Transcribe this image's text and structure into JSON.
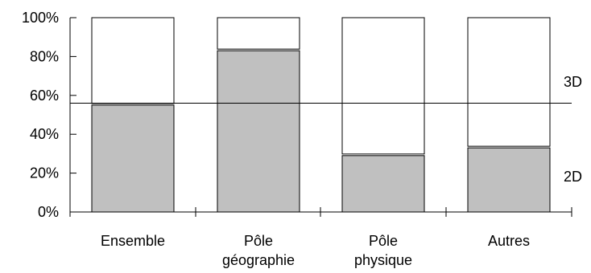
{
  "chart_data": {
    "type": "bar",
    "stacked": true,
    "categories": [
      [
        "Ensemble"
      ],
      [
        "Pôle",
        "géographie"
      ],
      [
        "Pôle",
        "physique"
      ],
      [
        "Autres"
      ]
    ],
    "series": [
      {
        "name": "2D",
        "values": [
          55,
          83,
          29,
          33
        ],
        "color": "#c0c0c0"
      },
      {
        "name": "3D",
        "values": [
          45,
          17,
          71,
          67
        ],
        "color": "#ffffff"
      }
    ],
    "reference_line": 56,
    "y_ticks": [
      "0%",
      "20%",
      "40%",
      "60%",
      "80%",
      "100%"
    ],
    "ylim": [
      0,
      100
    ],
    "grid": false,
    "legend_placement": "right"
  }
}
